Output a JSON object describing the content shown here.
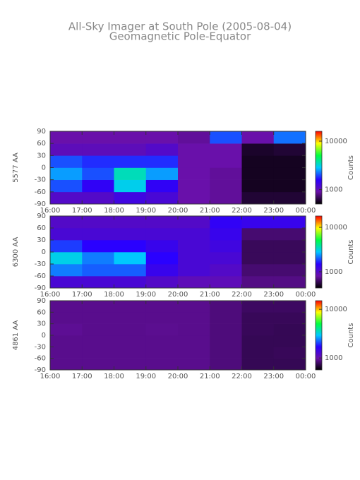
{
  "chart_data": [
    {
      "type": "heatmap",
      "title": "All-Sky Imager at South Pole (2005-08-04)",
      "subtitle": "Geomagnetic Pole-Equator",
      "ylabel": "5577 AA",
      "colorbar_label": "Counts",
      "xbins": [
        16,
        17,
        18,
        19,
        20,
        21,
        22,
        23,
        24
      ],
      "ybins": [
        -90,
        -60,
        -30,
        0,
        30,
        60,
        90
      ],
      "z": [
        [
          1100,
          1100,
          1300,
          1200,
          900,
          850,
          600,
          600
        ],
        [
          2000,
          1500,
          3000,
          1500,
          900,
          850,
          560,
          560
        ],
        [
          2500,
          2000,
          3500,
          2500,
          900,
          850,
          560,
          560
        ],
        [
          2000,
          1800,
          1800,
          1800,
          900,
          900,
          560,
          560
        ],
        [
          1000,
          1000,
          1000,
          1100,
          900,
          900,
          580,
          600
        ],
        [
          900,
          900,
          900,
          900,
          850,
          2000,
          900,
          2200
        ]
      ],
      "xlim": [
        16,
        24
      ],
      "xticks": [
        {
          "value": 16,
          "label": "16:00"
        },
        {
          "value": 17,
          "label": "17:00"
        },
        {
          "value": 18,
          "label": "18:00"
        },
        {
          "value": 19,
          "label": "19:00"
        },
        {
          "value": 20,
          "label": "20:00"
        },
        {
          "value": 21,
          "label": "21:00"
        },
        {
          "value": 22,
          "label": "22:00"
        },
        {
          "value": 23,
          "label": "23:00"
        },
        {
          "value": 24,
          "label": "00:00"
        }
      ],
      "ylim": [
        -90,
        90
      ],
      "yticks": [
        -90,
        -60,
        -30,
        0,
        30,
        60,
        90
      ],
      "zlim": [
        500,
        16000
      ],
      "zticks": [
        1000,
        10000
      ],
      "log_color_scale": true,
      "colormap": [
        "#000000",
        "#6a10a8",
        "#2a00ff",
        "#00c8ff",
        "#00ff40",
        "#ffff00",
        "#ff0000"
      ]
    },
    {
      "type": "heatmap",
      "ylabel": "6300 AA",
      "colorbar_label": "Counts",
      "xbins": [
        16,
        17,
        18,
        19,
        20,
        21,
        22,
        23,
        24
      ],
      "ybins": [
        -90,
        -60,
        -30,
        0,
        30,
        60,
        90
      ],
      "z": [
        [
          1100,
          1100,
          1100,
          1000,
          900,
          900,
          700,
          700
        ],
        [
          2200,
          2000,
          2000,
          1300,
          1100,
          1000,
          650,
          650
        ],
        [
          3000,
          2200,
          2800,
          1500,
          1100,
          1100,
          600,
          600
        ],
        [
          1800,
          1500,
          1500,
          1300,
          1100,
          1200,
          600,
          600
        ],
        [
          1100,
          1100,
          1100,
          1100,
          1100,
          1300,
          650,
          650
        ],
        [
          1000,
          1000,
          1000,
          1000,
          1000,
          1400,
          1300,
          1300
        ]
      ],
      "xlim": [
        16,
        24
      ],
      "xticks": [
        {
          "value": 16,
          "label": "16:00"
        },
        {
          "value": 17,
          "label": "17:00"
        },
        {
          "value": 18,
          "label": "18:00"
        },
        {
          "value": 19,
          "label": "19:00"
        },
        {
          "value": 20,
          "label": "20:00"
        },
        {
          "value": 21,
          "label": "21:00"
        },
        {
          "value": 22,
          "label": "22:00"
        },
        {
          "value": 23,
          "label": "23:00"
        },
        {
          "value": 24,
          "label": "00:00"
        }
      ],
      "ylim": [
        -90,
        90
      ],
      "yticks": [
        -90,
        -60,
        -30,
        0,
        30,
        60,
        90
      ],
      "zlim": [
        430,
        18000
      ],
      "zticks": [
        1000,
        10000
      ],
      "log_color_scale": true,
      "colormap": [
        "#000000",
        "#6a10a8",
        "#2a00ff",
        "#00c8ff",
        "#00ff40",
        "#ffff00",
        "#ff0000"
      ]
    },
    {
      "type": "heatmap",
      "ylabel": "4861 AA",
      "colorbar_label": "Counts",
      "xbins": [
        16,
        17,
        18,
        19,
        20,
        21,
        22,
        23,
        24
      ],
      "ybins": [
        -90,
        -60,
        -30,
        0,
        30,
        60,
        90
      ],
      "z": [
        [
          900,
          900,
          900,
          900,
          900,
          850,
          750,
          750
        ],
        [
          900,
          900,
          900,
          900,
          900,
          850,
          750,
          760
        ],
        [
          900,
          900,
          900,
          900,
          900,
          850,
          750,
          750
        ],
        [
          920,
          900,
          900,
          910,
          900,
          850,
          760,
          750
        ],
        [
          900,
          900,
          900,
          900,
          900,
          850,
          760,
          760
        ],
        [
          900,
          900,
          900,
          900,
          900,
          850,
          780,
          780
        ]
      ],
      "xlim": [
        16,
        24
      ],
      "xticks": [
        {
          "value": 16,
          "label": "16:00"
        },
        {
          "value": 17,
          "label": "17:00"
        },
        {
          "value": 18,
          "label": "18:00"
        },
        {
          "value": 19,
          "label": "19:00"
        },
        {
          "value": 20,
          "label": "20:00"
        },
        {
          "value": 21,
          "label": "21:00"
        },
        {
          "value": 22,
          "label": "22:00"
        },
        {
          "value": 23,
          "label": "23:00"
        },
        {
          "value": 24,
          "label": "00:00"
        }
      ],
      "ylim": [
        -90,
        90
      ],
      "yticks": [
        -90,
        -60,
        -30,
        0,
        30,
        60,
        90
      ],
      "zlim": [
        570,
        15000
      ],
      "zticks": [
        1000,
        10000
      ],
      "log_color_scale": true,
      "colormap": [
        "#000000",
        "#6a10a8",
        "#2a00ff",
        "#00c8ff",
        "#00ff40",
        "#ffff00",
        "#ff0000"
      ]
    }
  ]
}
